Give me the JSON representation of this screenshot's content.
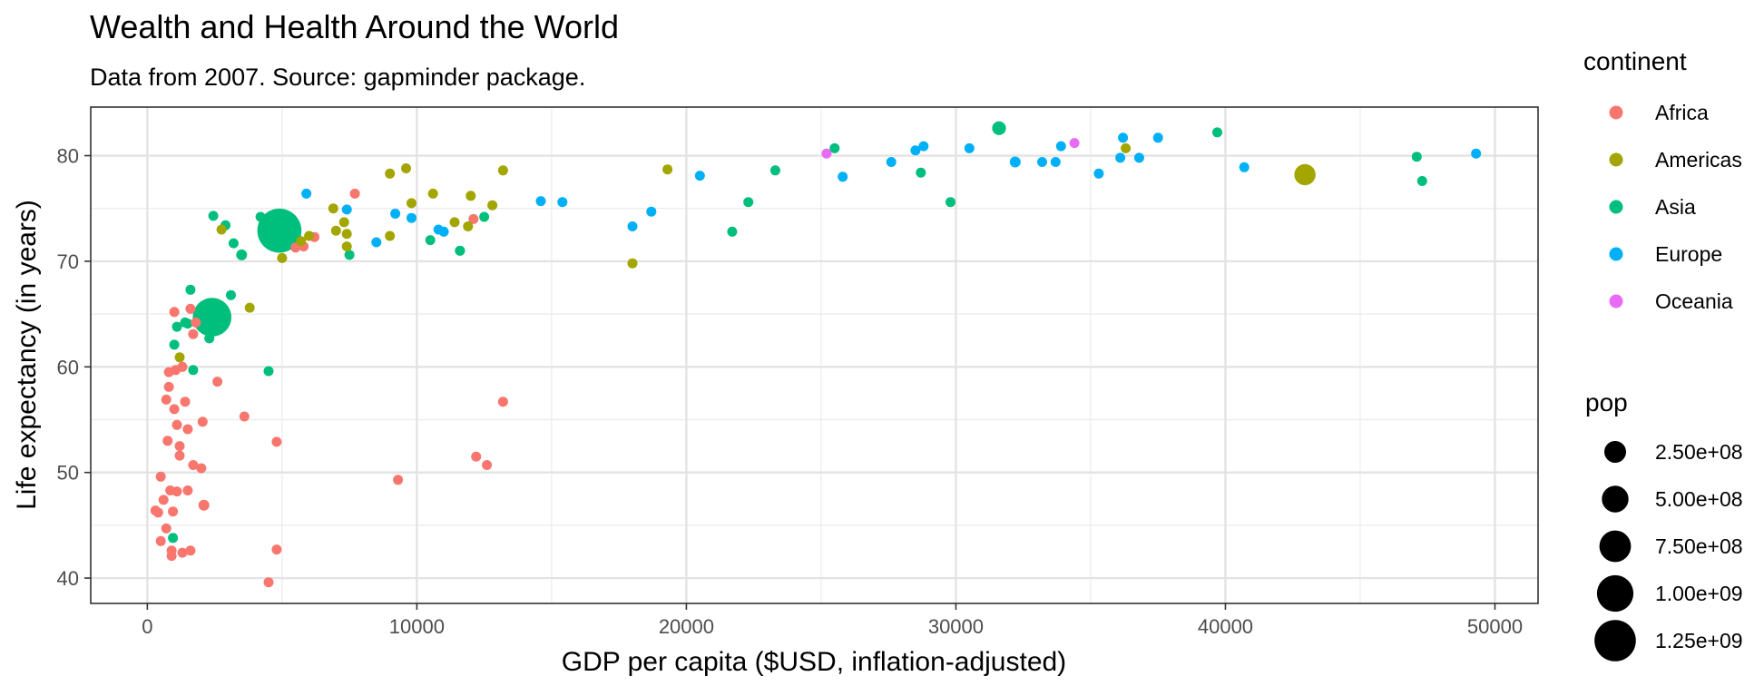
{
  "chart_data": {
    "type": "scatter",
    "title": "Wealth and Health Around the World",
    "subtitle": "Data from 2007. Source: gapminder package.",
    "xlabel": "GDP per capita ($USD, inflation-adjusted)",
    "ylabel": "Life expectancy (in years)",
    "xlim": [
      -2100,
      51600
    ],
    "ylim": [
      37.6,
      84.6
    ],
    "x_ticks": [
      0,
      10000,
      20000,
      30000,
      40000,
      50000
    ],
    "x_tick_labels": [
      "0",
      "10000",
      "20000",
      "30000",
      "40000",
      "50000"
    ],
    "y_ticks": [
      40,
      50,
      60,
      70,
      80
    ],
    "y_tick_labels": [
      "40",
      "50",
      "60",
      "70",
      "80"
    ],
    "grid": true,
    "legend_placement": "right",
    "color_legend": {
      "title": "continent",
      "entries": [
        {
          "name": "Africa",
          "color": "#F8766D"
        },
        {
          "name": "Americas",
          "color": "#A3A500"
        },
        {
          "name": "Asia",
          "color": "#00BF7D"
        },
        {
          "name": "Europe",
          "color": "#00B0F6"
        },
        {
          "name": "Oceania",
          "color": "#E76BF3"
        }
      ]
    },
    "size_legend": {
      "title": "pop",
      "entries": [
        {
          "label": "2.50e+08",
          "value": 250000000
        },
        {
          "label": "5.00e+08",
          "value": 500000000
        },
        {
          "label": "7.50e+08",
          "value": 750000000
        },
        {
          "label": "1.00e+09",
          "value": 1000000000
        },
        {
          "label": "1.25e+09",
          "value": 1250000000
        }
      ]
    },
    "series": [
      {
        "name": "Africa",
        "points": [
          [
            300,
            46.4,
            15
          ],
          [
            400,
            46.2,
            40
          ],
          [
            500,
            43.5,
            20
          ],
          [
            500,
            49.6,
            15
          ],
          [
            600,
            47.4,
            10
          ],
          [
            700,
            56.9,
            20
          ],
          [
            700,
            44.7,
            10
          ],
          [
            750,
            53,
            40
          ],
          [
            800,
            59.5,
            15
          ],
          [
            800,
            58.1,
            20
          ],
          [
            850,
            48.3,
            15
          ],
          [
            900,
            42.1,
            20
          ],
          [
            900,
            42.6,
            10
          ],
          [
            950,
            46.3,
            15
          ],
          [
            1000,
            65.2,
            5
          ],
          [
            1000,
            56,
            10
          ],
          [
            1050,
            59.7,
            15
          ],
          [
            1100,
            54.5,
            20
          ],
          [
            1100,
            48.2,
            15
          ],
          [
            1200,
            51.6,
            20
          ],
          [
            1200,
            52.5,
            20
          ],
          [
            1300,
            42.4,
            15
          ],
          [
            1300,
            60,
            10
          ],
          [
            1400,
            56.7,
            20
          ],
          [
            1500,
            54.1,
            20
          ],
          [
            1500,
            48.3,
            15
          ],
          [
            1600,
            42.6,
            10
          ],
          [
            1600,
            65.5,
            5
          ],
          [
            1700,
            50.7,
            15
          ],
          [
            1700,
            63.1,
            15
          ],
          [
            1800,
            64.2,
            10
          ],
          [
            2000,
            50.4,
            20
          ],
          [
            2050,
            54.8,
            5
          ],
          [
            2100,
            46.9,
            80
          ],
          [
            2600,
            58.6,
            20
          ],
          [
            3600,
            55.3,
            10
          ],
          [
            4500,
            39.6,
            5
          ],
          [
            4800,
            52.9,
            5
          ],
          [
            4800,
            42.7,
            15
          ],
          [
            5500,
            71.3,
            15
          ],
          [
            5800,
            71.4,
            5
          ],
          [
            6200,
            72.3,
            15
          ],
          [
            7700,
            76.4,
            5
          ],
          [
            9300,
            49.3,
            20
          ],
          [
            12100,
            74,
            10
          ],
          [
            12200,
            51.5,
            5
          ],
          [
            12600,
            50.7,
            5
          ],
          [
            13200,
            56.7,
            5
          ]
        ]
      },
      {
        "name": "Americas",
        "points": [
          [
            1200,
            60.9,
            5
          ],
          [
            2750,
            73,
            5
          ],
          [
            3800,
            65.6,
            10
          ],
          [
            5000,
            70.3,
            15
          ],
          [
            5700,
            71.9,
            5
          ],
          [
            6000,
            72.4,
            5
          ],
          [
            6900,
            75,
            10
          ],
          [
            7000,
            72.9,
            20
          ],
          [
            7300,
            73.7,
            15
          ],
          [
            7400,
            72.6,
            5
          ],
          [
            7400,
            71.4,
            10
          ],
          [
            9000,
            78.3,
            10
          ],
          [
            9000,
            72.4,
            60
          ],
          [
            9600,
            78.8,
            5
          ],
          [
            9800,
            75.5,
            5
          ],
          [
            10600,
            76.4,
            5
          ],
          [
            11400,
            73.7,
            5
          ],
          [
            11900,
            73.3,
            5
          ],
          [
            12000,
            76.2,
            40
          ],
          [
            12800,
            75.3,
            20
          ],
          [
            13200,
            78.6,
            10
          ],
          [
            18000,
            69.8,
            5
          ],
          [
            19300,
            78.7,
            5
          ],
          [
            36300,
            80.7,
            30
          ],
          [
            42950,
            78.2,
            300
          ]
        ]
      },
      {
        "name": "Asia",
        "points": [
          [
            950,
            43.8,
            30
          ],
          [
            1000,
            62.1,
            30
          ],
          [
            1100,
            63.8,
            10
          ],
          [
            1400,
            64.2,
            10
          ],
          [
            1500,
            64.1,
            50
          ],
          [
            1600,
            67.3,
            20
          ],
          [
            1700,
            59.7,
            15
          ],
          [
            2400,
            64.7,
            1000
          ],
          [
            2300,
            62.7,
            15
          ],
          [
            2450,
            74.3,
            40
          ],
          [
            2900,
            73.4,
            10
          ],
          [
            3100,
            66.8,
            10
          ],
          [
            3200,
            71.7,
            50
          ],
          [
            3500,
            70.6,
            80
          ],
          [
            4200,
            74.2,
            20
          ],
          [
            4500,
            59.6,
            30
          ],
          [
            4900,
            72.9,
            1300
          ],
          [
            7500,
            70.6,
            50
          ],
          [
            10500,
            72,
            5
          ],
          [
            11600,
            71,
            70
          ],
          [
            12500,
            74.2,
            25
          ],
          [
            21700,
            72.8,
            30
          ],
          [
            22300,
            75.6,
            5
          ],
          [
            23300,
            78.6,
            30
          ],
          [
            25500,
            80.7,
            10
          ],
          [
            28700,
            78.4,
            30
          ],
          [
            29800,
            75.6,
            5
          ],
          [
            31600,
            82.6,
            127
          ],
          [
            39700,
            82.2,
            10
          ],
          [
            47100,
            79.9,
            5
          ],
          [
            47300,
            77.6,
            5
          ]
        ]
      },
      {
        "name": "Europe",
        "points": [
          [
            5900,
            76.4,
            5
          ],
          [
            7400,
            74.9,
            5
          ],
          [
            8500,
            71.8,
            60
          ],
          [
            9200,
            74.5,
            5
          ],
          [
            9800,
            74.1,
            10
          ],
          [
            10800,
            73,
            10
          ],
          [
            11000,
            72.8,
            20
          ],
          [
            14600,
            75.7,
            10
          ],
          [
            15400,
            75.6,
            40
          ],
          [
            18000,
            73.3,
            10
          ],
          [
            18700,
            74.7,
            15
          ],
          [
            20500,
            78.1,
            20
          ],
          [
            25800,
            78,
            10
          ],
          [
            27600,
            79.4,
            20
          ],
          [
            28500,
            80.5,
            60
          ],
          [
            28800,
            80.9,
            40
          ],
          [
            30500,
            80.7,
            60
          ],
          [
            32200,
            79.4,
            80
          ],
          [
            33200,
            79.4,
            60
          ],
          [
            33700,
            79.4,
            20
          ],
          [
            33900,
            80.9,
            10
          ],
          [
            35300,
            78.3,
            5
          ],
          [
            36100,
            79.8,
            10
          ],
          [
            36200,
            81.7,
            5
          ],
          [
            36800,
            79.8,
            30
          ],
          [
            37500,
            81.7,
            5
          ],
          [
            40700,
            78.9,
            5
          ],
          [
            49300,
            80.2,
            5
          ]
        ]
      },
      {
        "name": "Oceania",
        "points": [
          [
            25200,
            80.2,
            5
          ],
          [
            34400,
            81.2,
            20
          ]
        ]
      }
    ],
    "point_size_unit": "population in millions"
  }
}
